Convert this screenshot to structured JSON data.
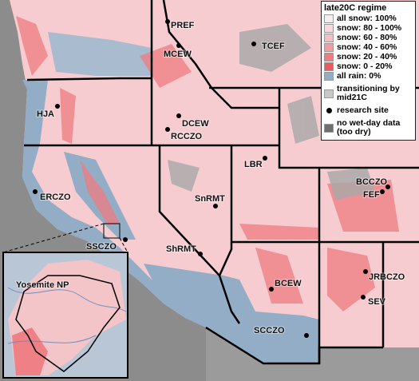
{
  "legend": {
    "title": "late20C regime",
    "items": [
      {
        "label": "all snow: 100%",
        "color": "#f4eef0"
      },
      {
        "label": "snow: 80 - 100%",
        "color": "#f8dadc"
      },
      {
        "label": "snow: 60 - 80%",
        "color": "#f5c0c3"
      },
      {
        "label": "snow: 40 - 60%",
        "color": "#f19ea2"
      },
      {
        "label": "snow: 20 - 40%",
        "color": "#ee7c80"
      },
      {
        "label": "snow: 0 - 20%",
        "color": "#eb5a60"
      },
      {
        "label": "all rain: 0%",
        "color": "#93adc6"
      },
      {
        "label": "transitioning by mid21C",
        "color": "#c8c8c8"
      },
      {
        "label": "research site",
        "color": "#000000"
      },
      {
        "label": "no wet-day data (too dry)",
        "color": "#6e6e6e"
      }
    ]
  },
  "sites": [
    "PREF",
    "MCEW",
    "TCEF",
    "HJA",
    "DCEW",
    "RCCZO",
    "LBR",
    "BCCZO",
    "FEF",
    "ERCZO",
    "SnRMT",
    "SSCZO",
    "ShRMT",
    "JRBCZO",
    "BCEW",
    "SEV",
    "SCCZO"
  ],
  "inset": {
    "title": "Yosemite NP"
  }
}
